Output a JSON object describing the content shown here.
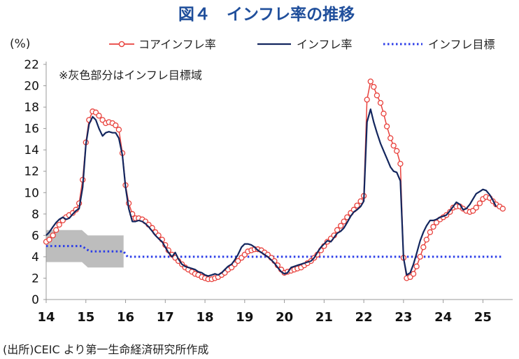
{
  "title": "図４　インフレ率の推移",
  "source": "(出所)CEIC より第一生命経済研究所作成",
  "colors": {
    "core": "#e8413c",
    "headline": "#13265e",
    "target": "#2d3ee8",
    "band": "#bdbdbd",
    "title": "#1f4e9b"
  },
  "chart_data": {
    "type": "line",
    "unit_label": "(%)",
    "annotation": "※灰色部分はインフレ目標域",
    "ylim": [
      0,
      22
    ],
    "yticks": [
      "0",
      "2",
      "4",
      "6",
      "8",
      "10",
      "12",
      "14",
      "16",
      "18",
      "20",
      "22"
    ],
    "xlim": [
      2014.0,
      2025.75
    ],
    "xticks": [
      "14",
      "15",
      "16",
      "17",
      "18",
      "19",
      "20",
      "21",
      "22",
      "23",
      "24",
      "25"
    ],
    "grid": false,
    "legend_position": "top-right",
    "series": [
      {
        "name": "コアインフレ率",
        "style": "line-with-markers",
        "color": "#e8413c",
        "points": [
          [
            2014.0,
            5.4
          ],
          [
            2014.08,
            5.6
          ],
          [
            2014.17,
            6.0
          ],
          [
            2014.25,
            6.5
          ],
          [
            2014.33,
            7.0
          ],
          [
            2014.42,
            7.4
          ],
          [
            2014.5,
            7.7
          ],
          [
            2014.58,
            7.9
          ],
          [
            2014.67,
            8.1
          ],
          [
            2014.75,
            8.4
          ],
          [
            2014.83,
            9.0
          ],
          [
            2014.92,
            11.2
          ],
          [
            2015.0,
            14.7
          ],
          [
            2015.08,
            16.8
          ],
          [
            2015.17,
            17.6
          ],
          [
            2015.25,
            17.5
          ],
          [
            2015.33,
            17.2
          ],
          [
            2015.42,
            16.8
          ],
          [
            2015.5,
            16.5
          ],
          [
            2015.58,
            16.6
          ],
          [
            2015.67,
            16.5
          ],
          [
            2015.75,
            16.3
          ],
          [
            2015.83,
            15.9
          ],
          [
            2015.92,
            13.7
          ],
          [
            2016.0,
            10.7
          ],
          [
            2016.08,
            9.0
          ],
          [
            2016.17,
            8.0
          ],
          [
            2016.25,
            7.6
          ],
          [
            2016.33,
            7.6
          ],
          [
            2016.42,
            7.5
          ],
          [
            2016.5,
            7.3
          ],
          [
            2016.58,
            7.0
          ],
          [
            2016.67,
            6.7
          ],
          [
            2016.75,
            6.3
          ],
          [
            2016.83,
            6.0
          ],
          [
            2016.92,
            5.6
          ],
          [
            2017.0,
            5.1
          ],
          [
            2017.08,
            4.6
          ],
          [
            2017.17,
            4.2
          ],
          [
            2017.25,
            3.9
          ],
          [
            2017.33,
            3.6
          ],
          [
            2017.42,
            3.3
          ],
          [
            2017.5,
            3.0
          ],
          [
            2017.58,
            2.8
          ],
          [
            2017.67,
            2.6
          ],
          [
            2017.75,
            2.4
          ],
          [
            2017.83,
            2.3
          ],
          [
            2017.92,
            2.1
          ],
          [
            2018.0,
            2.0
          ],
          [
            2018.08,
            1.9
          ],
          [
            2018.17,
            1.9
          ],
          [
            2018.25,
            2.0
          ],
          [
            2018.33,
            2.1
          ],
          [
            2018.42,
            2.3
          ],
          [
            2018.5,
            2.5
          ],
          [
            2018.58,
            2.8
          ],
          [
            2018.67,
            3.0
          ],
          [
            2018.75,
            3.3
          ],
          [
            2018.83,
            3.6
          ],
          [
            2018.92,
            3.9
          ],
          [
            2019.0,
            4.2
          ],
          [
            2019.08,
            4.5
          ],
          [
            2019.17,
            4.6
          ],
          [
            2019.25,
            4.7
          ],
          [
            2019.33,
            4.7
          ],
          [
            2019.42,
            4.6
          ],
          [
            2019.5,
            4.4
          ],
          [
            2019.58,
            4.2
          ],
          [
            2019.67,
            3.9
          ],
          [
            2019.75,
            3.6
          ],
          [
            2019.83,
            3.2
          ],
          [
            2019.92,
            2.8
          ],
          [
            2020.0,
            2.5
          ],
          [
            2020.08,
            2.6
          ],
          [
            2020.17,
            2.7
          ],
          [
            2020.25,
            2.8
          ],
          [
            2020.33,
            2.9
          ],
          [
            2020.42,
            3.0
          ],
          [
            2020.5,
            3.2
          ],
          [
            2020.58,
            3.4
          ],
          [
            2020.67,
            3.6
          ],
          [
            2020.75,
            3.9
          ],
          [
            2020.83,
            4.2
          ],
          [
            2020.92,
            4.6
          ],
          [
            2021.0,
            5.0
          ],
          [
            2021.08,
            5.4
          ],
          [
            2021.17,
            5.7
          ],
          [
            2021.25,
            6.0
          ],
          [
            2021.33,
            6.5
          ],
          [
            2021.42,
            6.9
          ],
          [
            2021.5,
            7.3
          ],
          [
            2021.58,
            7.7
          ],
          [
            2021.67,
            8.1
          ],
          [
            2021.75,
            8.4
          ],
          [
            2021.83,
            8.8
          ],
          [
            2021.92,
            9.2
          ],
          [
            2022.0,
            9.7
          ],
          [
            2022.08,
            18.7
          ],
          [
            2022.17,
            20.4
          ],
          [
            2022.25,
            19.9
          ],
          [
            2022.33,
            19.1
          ],
          [
            2022.42,
            18.4
          ],
          [
            2022.5,
            17.4
          ],
          [
            2022.58,
            16.2
          ],
          [
            2022.67,
            15.1
          ],
          [
            2022.75,
            14.4
          ],
          [
            2022.83,
            13.9
          ],
          [
            2022.92,
            12.7
          ],
          [
            2023.0,
            3.9
          ],
          [
            2023.08,
            2.0
          ],
          [
            2023.17,
            2.1
          ],
          [
            2023.25,
            2.4
          ],
          [
            2023.33,
            3.1
          ],
          [
            2023.42,
            4.0
          ],
          [
            2023.5,
            4.9
          ],
          [
            2023.58,
            5.6
          ],
          [
            2023.67,
            6.3
          ],
          [
            2023.75,
            6.8
          ],
          [
            2023.83,
            7.2
          ],
          [
            2023.92,
            7.5
          ],
          [
            2024.0,
            7.7
          ],
          [
            2024.08,
            7.9
          ],
          [
            2024.17,
            8.2
          ],
          [
            2024.25,
            8.6
          ],
          [
            2024.33,
            8.7
          ],
          [
            2024.42,
            8.7
          ],
          [
            2024.5,
            8.5
          ],
          [
            2024.58,
            8.3
          ],
          [
            2024.67,
            8.2
          ],
          [
            2024.75,
            8.3
          ],
          [
            2024.83,
            8.6
          ],
          [
            2024.92,
            9.0
          ],
          [
            2025.0,
            9.4
          ],
          [
            2025.08,
            9.6
          ],
          [
            2025.17,
            9.5
          ],
          [
            2025.25,
            9.2
          ],
          [
            2025.33,
            8.9
          ],
          [
            2025.42,
            8.7
          ],
          [
            2025.5,
            8.5
          ]
        ]
      },
      {
        "name": "インフレ率",
        "style": "line",
        "color": "#13265e",
        "points": [
          [
            2014.0,
            6.0
          ],
          [
            2014.08,
            6.3
          ],
          [
            2014.17,
            6.8
          ],
          [
            2014.25,
            7.2
          ],
          [
            2014.33,
            7.5
          ],
          [
            2014.42,
            7.7
          ],
          [
            2014.5,
            7.5
          ],
          [
            2014.58,
            7.6
          ],
          [
            2014.67,
            8.0
          ],
          [
            2014.75,
            8.3
          ],
          [
            2014.83,
            8.5
          ],
          [
            2014.92,
            10.5
          ],
          [
            2015.0,
            14.5
          ],
          [
            2015.08,
            16.4
          ],
          [
            2015.17,
            17.1
          ],
          [
            2015.25,
            16.8
          ],
          [
            2015.33,
            16.0
          ],
          [
            2015.42,
            15.3
          ],
          [
            2015.5,
            15.6
          ],
          [
            2015.58,
            15.7
          ],
          [
            2015.67,
            15.6
          ],
          [
            2015.75,
            15.6
          ],
          [
            2015.83,
            15.1
          ],
          [
            2015.92,
            13.5
          ],
          [
            2016.0,
            10.5
          ],
          [
            2016.08,
            8.5
          ],
          [
            2016.17,
            7.3
          ],
          [
            2016.25,
            7.3
          ],
          [
            2016.33,
            7.4
          ],
          [
            2016.42,
            7.3
          ],
          [
            2016.5,
            7.1
          ],
          [
            2016.58,
            6.8
          ],
          [
            2016.67,
            6.4
          ],
          [
            2016.75,
            6.0
          ],
          [
            2016.83,
            5.7
          ],
          [
            2016.92,
            5.4
          ],
          [
            2017.0,
            4.9
          ],
          [
            2017.08,
            4.4
          ],
          [
            2017.17,
            4.0
          ],
          [
            2017.25,
            4.4
          ],
          [
            2017.33,
            3.8
          ],
          [
            2017.42,
            3.3
          ],
          [
            2017.5,
            3.1
          ],
          [
            2017.58,
            3.0
          ],
          [
            2017.67,
            2.9
          ],
          [
            2017.75,
            2.8
          ],
          [
            2017.83,
            2.6
          ],
          [
            2017.92,
            2.5
          ],
          [
            2018.0,
            2.3
          ],
          [
            2018.08,
            2.2
          ],
          [
            2018.17,
            2.3
          ],
          [
            2018.25,
            2.4
          ],
          [
            2018.33,
            2.3
          ],
          [
            2018.42,
            2.5
          ],
          [
            2018.5,
            2.8
          ],
          [
            2018.58,
            3.1
          ],
          [
            2018.67,
            3.3
          ],
          [
            2018.75,
            3.7
          ],
          [
            2018.83,
            4.2
          ],
          [
            2018.92,
            4.9
          ],
          [
            2019.0,
            5.2
          ],
          [
            2019.08,
            5.2
          ],
          [
            2019.17,
            5.1
          ],
          [
            2019.25,
            4.9
          ],
          [
            2019.33,
            4.6
          ],
          [
            2019.42,
            4.4
          ],
          [
            2019.5,
            4.2
          ],
          [
            2019.58,
            4.0
          ],
          [
            2019.67,
            3.7
          ],
          [
            2019.75,
            3.4
          ],
          [
            2019.83,
            3.0
          ],
          [
            2019.92,
            2.6
          ],
          [
            2020.0,
            2.4
          ],
          [
            2020.08,
            2.5
          ],
          [
            2020.17,
            3.0
          ],
          [
            2020.25,
            3.1
          ],
          [
            2020.33,
            3.2
          ],
          [
            2020.42,
            3.3
          ],
          [
            2020.5,
            3.4
          ],
          [
            2020.58,
            3.5
          ],
          [
            2020.67,
            3.6
          ],
          [
            2020.75,
            3.9
          ],
          [
            2020.83,
            4.4
          ],
          [
            2020.92,
            4.9
          ],
          [
            2021.0,
            5.2
          ],
          [
            2021.08,
            5.5
          ],
          [
            2021.17,
            5.4
          ],
          [
            2021.25,
            5.8
          ],
          [
            2021.33,
            6.2
          ],
          [
            2021.42,
            6.4
          ],
          [
            2021.5,
            6.7
          ],
          [
            2021.58,
            7.2
          ],
          [
            2021.67,
            7.8
          ],
          [
            2021.75,
            8.2
          ],
          [
            2021.83,
            8.4
          ],
          [
            2021.92,
            8.7
          ],
          [
            2022.0,
            9.2
          ],
          [
            2022.08,
            16.6
          ],
          [
            2022.17,
            17.8
          ],
          [
            2022.25,
            16.6
          ],
          [
            2022.33,
            15.6
          ],
          [
            2022.42,
            14.6
          ],
          [
            2022.5,
            13.9
          ],
          [
            2022.58,
            13.2
          ],
          [
            2022.67,
            12.4
          ],
          [
            2022.75,
            12.0
          ],
          [
            2022.83,
            11.9
          ],
          [
            2022.92,
            11.1
          ],
          [
            2023.0,
            3.9
          ],
          [
            2023.08,
            2.3
          ],
          [
            2023.17,
            2.5
          ],
          [
            2023.25,
            3.3
          ],
          [
            2023.33,
            4.3
          ],
          [
            2023.42,
            5.5
          ],
          [
            2023.5,
            6.3
          ],
          [
            2023.58,
            6.9
          ],
          [
            2023.67,
            7.4
          ],
          [
            2023.75,
            7.4
          ],
          [
            2023.83,
            7.5
          ],
          [
            2023.92,
            7.7
          ],
          [
            2024.0,
            7.8
          ],
          [
            2024.08,
            7.9
          ],
          [
            2024.17,
            8.3
          ],
          [
            2024.25,
            8.7
          ],
          [
            2024.33,
            9.1
          ],
          [
            2024.42,
            8.9
          ],
          [
            2024.5,
            8.4
          ],
          [
            2024.58,
            8.5
          ],
          [
            2024.67,
            8.9
          ],
          [
            2024.75,
            9.4
          ],
          [
            2024.83,
            9.9
          ],
          [
            2024.92,
            10.1
          ],
          [
            2025.0,
            10.3
          ],
          [
            2025.08,
            10.2
          ],
          [
            2025.17,
            9.8
          ],
          [
            2025.25,
            9.3
          ],
          [
            2025.33,
            8.7
          ]
        ]
      },
      {
        "name": "インフレ目標",
        "style": "dotted",
        "color": "#2d3ee8",
        "points": [
          [
            2014.0,
            5.0
          ],
          [
            2014.9,
            5.0
          ],
          [
            2015.1,
            4.5
          ],
          [
            2015.95,
            4.5
          ],
          [
            2016.05,
            4.0
          ],
          [
            2025.5,
            4.0
          ]
        ]
      }
    ],
    "target_band": {
      "upper": [
        [
          2014.0,
          6.5
        ],
        [
          2014.9,
          6.5
        ],
        [
          2015.05,
          6.0
        ],
        [
          2015.95,
          6.0
        ]
      ],
      "lower": [
        [
          2014.0,
          3.5
        ],
        [
          2014.9,
          3.5
        ],
        [
          2015.05,
          3.0
        ],
        [
          2015.95,
          3.0
        ]
      ]
    }
  }
}
